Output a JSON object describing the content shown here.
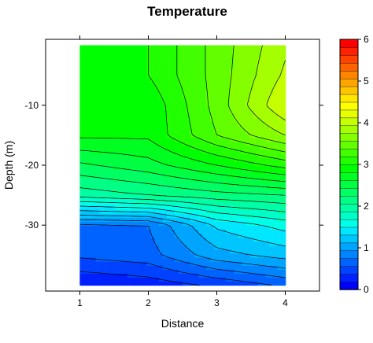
{
  "chart_data": {
    "type": "heatmap",
    "subtype": "filled-contour",
    "title": "Temperature",
    "xlabel": "Distance",
    "ylabel": "Depth (m)",
    "x": [
      1,
      2,
      3,
      4
    ],
    "y": [
      -40,
      -35,
      -30,
      -25,
      -20,
      -15,
      -10,
      -5,
      0
    ],
    "xlim": [
      0.5,
      4.5
    ],
    "ylim": [
      -41,
      1
    ],
    "xticks": [
      1,
      2,
      3,
      4
    ],
    "yticks": [
      -10,
      -20,
      -30
    ],
    "values": [
      [
        0.25,
        0.35,
        0.55,
        0.8
      ],
      [
        0.8,
        0.9,
        1.4,
        1.6
      ],
      [
        0.95,
        1.0,
        1.8,
        2.1
      ],
      [
        2.6,
        2.75,
        2.9,
        3.0
      ],
      [
        3.2,
        3.4,
        3.75,
        4.1
      ],
      [
        3.8,
        3.8,
        4.5,
        5.0
      ],
      [
        3.8,
        3.8,
        4.6,
        5.5
      ],
      [
        3.9,
        4.0,
        4.6,
        5.3
      ],
      [
        3.8,
        4.0,
        4.6,
        5.2
      ]
    ],
    "colorbar": {
      "min": 0,
      "max": 6,
      "step": 0.25,
      "ticks": [
        0,
        1,
        2,
        3,
        4,
        5,
        6
      ],
      "colors": [
        "#0000ff",
        "#0021ff",
        "#0042ff",
        "#0063ff",
        "#0084ff",
        "#00a5ff",
        "#00c6ff",
        "#00e7ff",
        "#00ffe7",
        "#00ffc6",
        "#00ffa5",
        "#00ff84",
        "#00ff63",
        "#00ff42",
        "#00ff21",
        "#00ff00",
        "#21ff00",
        "#42ff00",
        "#63ff00",
        "#84ff00",
        "#a5ff00",
        "#c6ff00",
        "#e7ff00",
        "#ffff00",
        "#ffe700",
        "#ffc600",
        "#ffa500",
        "#ff8400",
        "#ff6300",
        "#ff4200",
        "#ff2100",
        "#ff0000"
      ]
    },
    "grid": false,
    "legend": "colorbar-right"
  }
}
